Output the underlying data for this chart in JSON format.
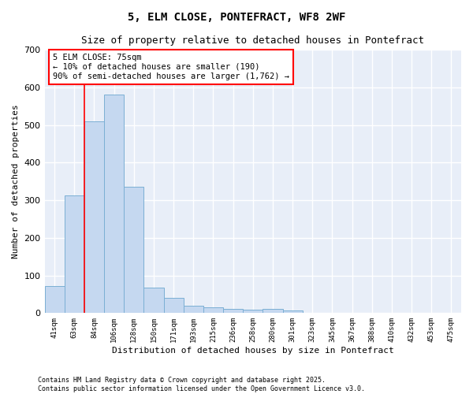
{
  "title": "5, ELM CLOSE, PONTEFRACT, WF8 2WF",
  "subtitle": "Size of property relative to detached houses in Pontefract",
  "xlabel": "Distribution of detached houses by size in Pontefract",
  "ylabel": "Number of detached properties",
  "categories": [
    "41sqm",
    "63sqm",
    "84sqm",
    "106sqm",
    "128sqm",
    "150sqm",
    "171sqm",
    "193sqm",
    "215sqm",
    "236sqm",
    "258sqm",
    "280sqm",
    "301sqm",
    "323sqm",
    "345sqm",
    "367sqm",
    "388sqm",
    "410sqm",
    "432sqm",
    "453sqm",
    "475sqm"
  ],
  "values": [
    72,
    312,
    510,
    582,
    335,
    68,
    40,
    20,
    15,
    12,
    10,
    12,
    7,
    0,
    0,
    0,
    0,
    0,
    0,
    0,
    0
  ],
  "bar_color": "#c5d8f0",
  "bar_edge_color": "#7bafd4",
  "fig_background_color": "#ffffff",
  "axes_background_color": "#e8eef8",
  "grid_color": "#ffffff",
  "ylim": [
    0,
    700
  ],
  "yticks": [
    0,
    100,
    200,
    300,
    400,
    500,
    600,
    700
  ],
  "red_line_x": 1.5,
  "annotation_title": "5 ELM CLOSE: 75sqm",
  "annotation_line1": "← 10% of detached houses are smaller (190)",
  "annotation_line2": "90% of semi-detached houses are larger (1,762) →",
  "footer_line1": "Contains HM Land Registry data © Crown copyright and database right 2025.",
  "footer_line2": "Contains public sector information licensed under the Open Government Licence v3.0."
}
